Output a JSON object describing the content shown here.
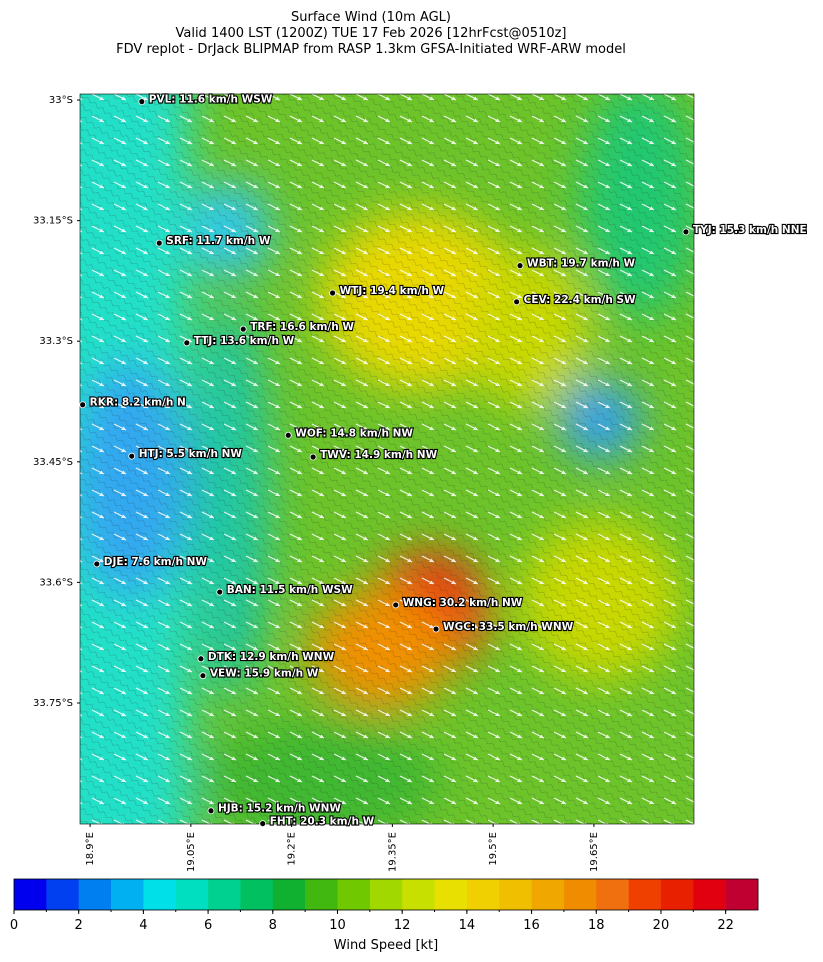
{
  "chart_data": {
    "type": "map",
    "title": [
      "Surface Wind (10m AGL)",
      "Valid 1400 LST (1200Z) TUE 17 Feb 2026 [12hrFcst@0510z]",
      "FDV replot - DrJack BLIPMAP from RASP 1.3km GFSA-Initiated WRF-ARW model"
    ],
    "xlim": [
      18.885,
      19.799
    ],
    "ylim": [
      -33.9005,
      -32.9925
    ],
    "xticks": [
      {
        "value": 18.9,
        "label": "18.9°E"
      },
      {
        "value": 19.05,
        "label": "19.05°E"
      },
      {
        "value": 19.2,
        "label": "19.2°E"
      },
      {
        "value": 19.35,
        "label": "19.35°E"
      },
      {
        "value": 19.5,
        "label": "19.5°E"
      },
      {
        "value": 19.65,
        "label": "19.65°E"
      }
    ],
    "yticks": [
      {
        "value": -33,
        "label": "33°S"
      },
      {
        "value": -33.15,
        "label": "33.15°S"
      },
      {
        "value": -33.3,
        "label": "33.3°S"
      },
      {
        "value": -33.45,
        "label": "33.45°S"
      },
      {
        "value": -33.6,
        "label": "33.6°S"
      },
      {
        "value": -33.75,
        "label": "33.75°S"
      }
    ],
    "stations": [
      {
        "label": "PVL: 11.6 km/h WSW",
        "lon": 18.977,
        "lat": -33.002
      },
      {
        "label": "SRF: 11.7 km/h W",
        "lon": 19.003,
        "lat": -33.178
      },
      {
        "label": "WTJ: 19.4 km/h W",
        "lon": 19.261,
        "lat": -33.24
      },
      {
        "label": "WBT: 19.7 km/h W",
        "lon": 19.54,
        "lat": -33.206
      },
      {
        "label": "CEV: 22.4 km/h SW",
        "lon": 19.535,
        "lat": -33.251
      },
      {
        "label": "TRF: 16.6 km/h W",
        "lon": 19.128,
        "lat": -33.285
      },
      {
        "label": "TTJ: 13.6 km/h W",
        "lon": 19.044,
        "lat": -33.302
      },
      {
        "label": "RKR: 8.2 km/h N",
        "lon": 18.889,
        "lat": -33.379
      },
      {
        "label": "WOF: 14.8 km/h NW",
        "lon": 19.195,
        "lat": -33.417
      },
      {
        "label": "HTJ: 5.5 km/h NW",
        "lon": 18.962,
        "lat": -33.443
      },
      {
        "label": "TWV: 14.9 km/h NW",
        "lon": 19.232,
        "lat": -33.444
      },
      {
        "label": "DJE: 7.6 km/h NW",
        "lon": 18.91,
        "lat": -33.577
      },
      {
        "label": "BAN: 11.5 km/h WSW",
        "lon": 19.093,
        "lat": -33.612
      },
      {
        "label": "WNG: 30.2 km/h NW",
        "lon": 19.355,
        "lat": -33.628
      },
      {
        "label": "WGC: 33.5 km/h WNW",
        "lon": 19.415,
        "lat": -33.658
      },
      {
        "label": "DTK: 12.9 km/h WNW",
        "lon": 19.065,
        "lat": -33.695
      },
      {
        "label": "VEW: 15.9 km/h W",
        "lon": 19.068,
        "lat": -33.716
      },
      {
        "label": "HJB: 15.2 km/h WNW",
        "lon": 19.08,
        "lat": -33.884
      },
      {
        "label": "FHT: 20.3 km/h W",
        "lon": 19.157,
        "lat": -33.9
      },
      {
        "label": "TYJ: 15.3 km/h NNE",
        "lon": 19.787,
        "lat": -33.164
      }
    ],
    "colorbar": {
      "label": "Wind Speed [kt]",
      "lim": [
        0,
        23
      ],
      "ticks": [
        0,
        2,
        4,
        6,
        8,
        10,
        12,
        14,
        16,
        18,
        20,
        22
      ],
      "colors": [
        "#0000ee",
        "#0040f0",
        "#0080f0",
        "#00b0f0",
        "#00e0e8",
        "#00e0c0",
        "#00d090",
        "#00c060",
        "#10b030",
        "#40b810",
        "#70c800",
        "#a0d800",
        "#c8e000",
        "#e8e000",
        "#f0d000",
        "#f0c000",
        "#f0a800",
        "#f08c00",
        "#f07010",
        "#f04000",
        "#e82000",
        "#e00010",
        "#c00030"
      ]
    }
  }
}
